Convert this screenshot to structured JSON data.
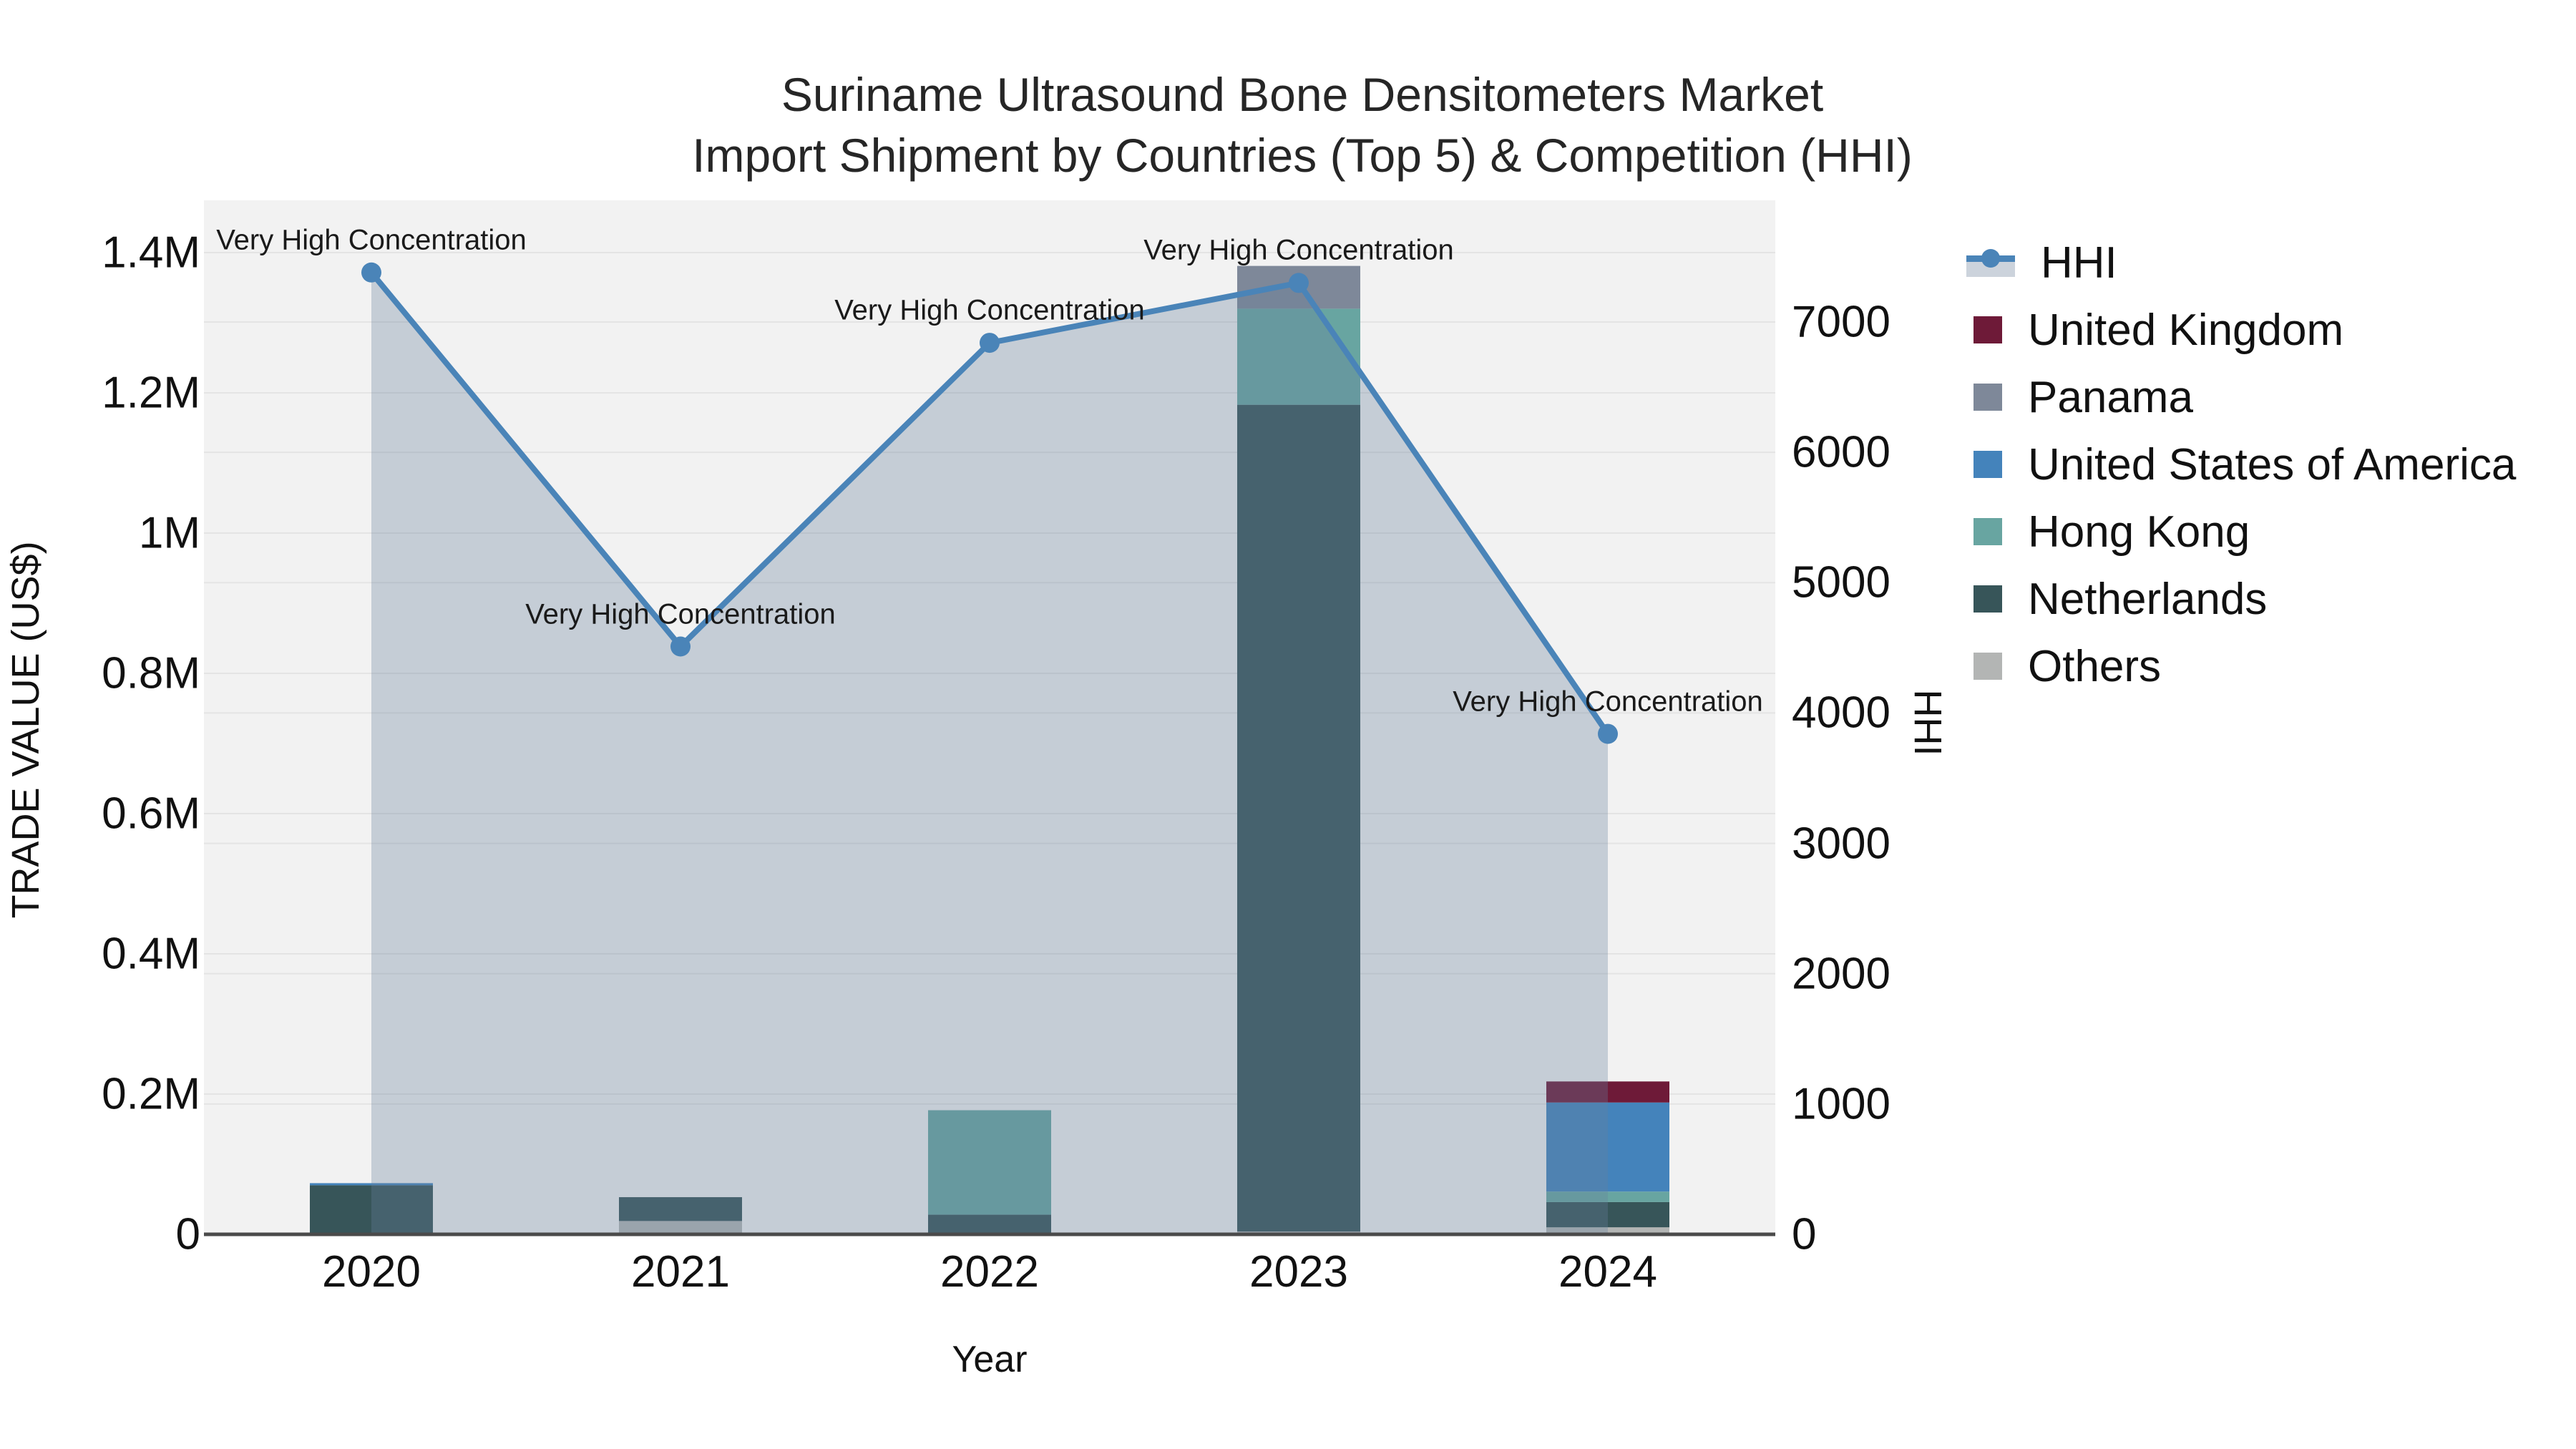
{
  "title": {
    "line1": "Suriname Ultrasound Bone Densitometers Market",
    "line2": "Import Shipment by Countries (Top 5) & Competition (HHI)"
  },
  "axes": {
    "x": {
      "label": "Year",
      "ticks": [
        "2020",
        "2021",
        "2022",
        "2023",
        "2024"
      ]
    },
    "y_left": {
      "label": "TRADE VALUE (US$)",
      "ticks": [
        "0",
        "0.2M",
        "0.4M",
        "0.6M",
        "0.8M",
        "1M",
        "1.2M",
        "1.4M"
      ]
    },
    "y_right": {
      "label": "HHI",
      "ticks": [
        "0",
        "1000",
        "2000",
        "3000",
        "4000",
        "5000",
        "6000",
        "7000"
      ]
    }
  },
  "legend": [
    {
      "label": "HHI",
      "type": "line",
      "color": "#4a84b8",
      "band": "#ccd3dc"
    },
    {
      "label": "United Kingdom",
      "type": "swatch",
      "color": "#6e1a38"
    },
    {
      "label": "Panama",
      "type": "swatch",
      "color": "#7e8899"
    },
    {
      "label": "United States of America",
      "type": "swatch",
      "color": "#4483bb"
    },
    {
      "label": "Hong Kong",
      "type": "swatch",
      "color": "#68a5a1"
    },
    {
      "label": "Netherlands",
      "type": "swatch",
      "color": "#375559"
    },
    {
      "label": "Others",
      "type": "swatch",
      "color": "#b3b5b4"
    }
  ],
  "chart_data": {
    "type": "bar+line",
    "categories": [
      "2020",
      "2021",
      "2022",
      "2023",
      "2024"
    ],
    "bar_stack_order_bottom_to_top": [
      "Others",
      "Netherlands",
      "Hong Kong",
      "United States of America",
      "Panama",
      "United Kingdom"
    ],
    "series": [
      {
        "name": "Others",
        "color": "#b3b5b4",
        "values": [
          0,
          19000,
          0,
          4000,
          10000
        ]
      },
      {
        "name": "Netherlands",
        "color": "#375559",
        "values": [
          70000,
          34000,
          28000,
          1179000,
          36000
        ]
      },
      {
        "name": "Hong Kong",
        "color": "#68a5a1",
        "values": [
          0,
          0,
          149000,
          137000,
          15000
        ]
      },
      {
        "name": "United States of America",
        "color": "#4483bb",
        "values": [
          3000,
          0,
          0,
          0,
          127000
        ]
      },
      {
        "name": "Panama",
        "color": "#7e8899",
        "values": [
          0,
          0,
          0,
          61000,
          0
        ]
      },
      {
        "name": "United Kingdom",
        "color": "#6e1a38",
        "values": [
          0,
          0,
          0,
          0,
          30000
        ]
      }
    ],
    "line_series": {
      "name": "HHI",
      "color": "#4a84b8",
      "area_fill": "rgba(104,126,156,0.32)",
      "values": [
        7380,
        4510,
        6840,
        7300,
        3840
      ]
    },
    "annotations": [
      "Very High Concentration",
      "Very High Concentration",
      "Very High Concentration",
      "Very High Concentration",
      "Very High Concentration"
    ],
    "title": "Suriname Ultrasound Bone Densitometers Market Import Shipment by Countries (Top 5) & Competition (HHI)",
    "xlabel": "Year",
    "ylabel_left": "TRADE VALUE (US$)",
    "ylabel_right": "HHI",
    "ylim_left": [
      0,
      1400000
    ],
    "ylim_right": [
      0,
      7000
    ],
    "grid": true,
    "legend_position": "right",
    "plot_bg": "#f2f2f2",
    "grid_color": "#e4e4e4",
    "axis_line_color": "#4a4a4a"
  }
}
